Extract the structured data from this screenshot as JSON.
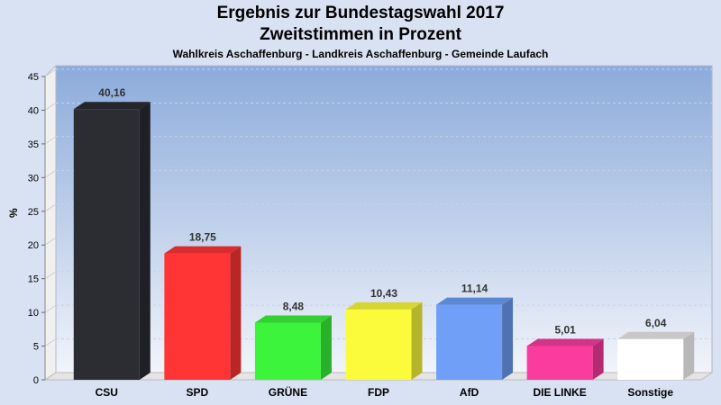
{
  "chart_data": {
    "type": "bar",
    "title": "Ergebnis zur Bundestagswahl 2017",
    "subtitle": "Zweitstimmen in Prozent",
    "caption": "Wahlkreis Aschaffenburg - Landkreis Aschaffenburg - Gemeinde Laufach",
    "ylabel": "%",
    "xlabel": "",
    "ylim": [
      0,
      45
    ],
    "yticks": [
      0,
      5,
      10,
      15,
      20,
      25,
      30,
      35,
      40,
      45
    ],
    "categories": [
      "CSU",
      "SPD",
      "GRÜNE",
      "FDP",
      "AfD",
      "DIE LINKE",
      "Sonstige"
    ],
    "values": [
      40.16,
      18.75,
      8.48,
      10.43,
      11.14,
      5.01,
      6.04
    ],
    "value_labels": [
      "40,16",
      "18,75",
      "8,48",
      "10,43",
      "11,14",
      "5,01",
      "6,04"
    ],
    "colors": [
      "#2b2d33",
      "#ff3535",
      "#3cf43c",
      "#fbfb3c",
      "#6f9ff7",
      "#fb3c9f",
      "#ffffff"
    ],
    "grid": true,
    "legend": "none"
  }
}
